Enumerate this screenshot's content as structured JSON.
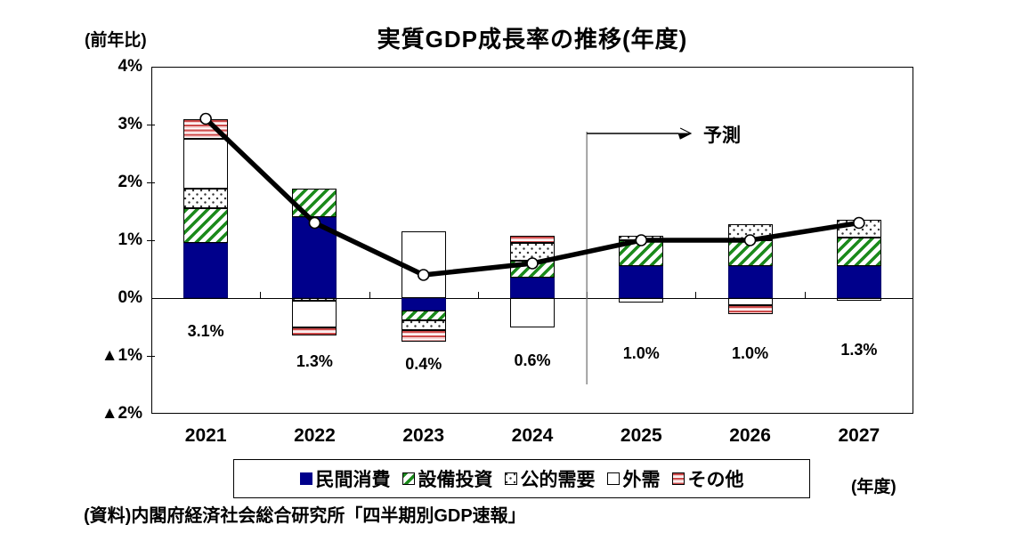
{
  "header": {
    "title": "実質GDP成長率の推移(年度)",
    "y_unit_label": "(前年比)"
  },
  "chart_data": {
    "type": "bar",
    "subtype": "stacked-bar-with-line",
    "title": "実質GDP成長率の推移(年度)",
    "categories": [
      "2021",
      "2022",
      "2023",
      "2024",
      "2025",
      "2026",
      "2027"
    ],
    "series": [
      {
        "name": "民間消費",
        "key": "consumption",
        "values": [
          0.95,
          1.4,
          -0.22,
          0.35,
          0.55,
          0.55,
          0.55
        ]
      },
      {
        "name": "設備投資",
        "key": "capex",
        "values": [
          0.6,
          0.5,
          -0.16,
          0.3,
          0.45,
          0.45,
          0.5
        ]
      },
      {
        "name": "公的需要",
        "key": "public",
        "values": [
          0.35,
          -0.05,
          -0.18,
          0.3,
          0.08,
          0.27,
          0.3
        ]
      },
      {
        "name": "外需",
        "key": "external",
        "values": [
          0.85,
          -0.45,
          1.15,
          -0.5,
          -0.08,
          -0.12,
          -0.05
        ]
      },
      {
        "name": "その他",
        "key": "other",
        "values": [
          0.35,
          -0.15,
          -0.19,
          0.12,
          0.0,
          -0.15,
          0.0
        ]
      }
    ],
    "line": {
      "name": "実質GDP成長率",
      "values": [
        3.1,
        1.3,
        0.4,
        0.6,
        1.0,
        1.0,
        1.3
      ]
    },
    "data_labels": [
      "3.1%",
      "1.3%",
      "0.4%",
      "0.6%",
      "1.0%",
      "1.0%",
      "1.3%"
    ],
    "y_ticks": [
      "4%",
      "3%",
      "2%",
      "1%",
      "0%",
      "▲1%",
      "▲2%"
    ],
    "y_tick_values": [
      4,
      3,
      2,
      1,
      0,
      -1,
      -2
    ],
    "ylim": [
      -2,
      4
    ],
    "grid": false,
    "legend_position": "bottom",
    "forecast_annotation": {
      "label": "予測",
      "divider_after_category": "2024"
    }
  },
  "legend": {
    "items": [
      {
        "label": "民間消費",
        "key": "consumption"
      },
      {
        "label": "設備投資",
        "key": "capex"
      },
      {
        "label": "公的需要",
        "key": "public"
      },
      {
        "label": "外需",
        "key": "external"
      },
      {
        "label": "その他",
        "key": "other"
      }
    ]
  },
  "footer": {
    "x_unit_label": "(年度)",
    "source": "(資料)内閣府経済社会総合研究所「四半期別GDP速報」"
  },
  "colors": {
    "consumption": "#00008B",
    "capex_stripe": "#1b8a1b",
    "public_dot": "#3a3a3a",
    "other_stripe": "#cd4a4a",
    "line": "#000000",
    "marker_fill": "#ffffff",
    "forecast_divider": "#777777"
  }
}
